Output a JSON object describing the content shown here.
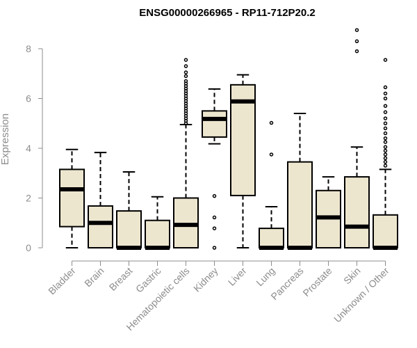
{
  "chart_data": {
    "type": "boxplot",
    "title": "ENSG00000266965 - RP11-712P20.2",
    "xlabel": "",
    "ylabel": "Expression",
    "ylim": [
      0,
      8.9
    ],
    "yticks": [
      0,
      2,
      4,
      6,
      8
    ],
    "colors": {
      "box_fill": "#ede6cf",
      "stroke": "#000000",
      "axis": "#8c8c8c"
    },
    "categories": [
      "Bladder",
      "Brain",
      "Breast",
      "Gastric",
      "Hematopoietic cells",
      "Kidney",
      "Liver",
      "Lung",
      "Pancreas",
      "Prostate",
      "Skin",
      "Unknown / Other"
    ],
    "boxes": [
      {
        "q1": 0.85,
        "median": 2.35,
        "q3": 3.15,
        "whisker_low": 0.0,
        "whisker_high": 3.95,
        "outliers": []
      },
      {
        "q1": 0.0,
        "median": 1.0,
        "q3": 1.68,
        "whisker_low": 0.0,
        "whisker_high": 3.83,
        "outliers": []
      },
      {
        "q1": 0.0,
        "median": 0.0,
        "q3": 1.48,
        "whisker_low": 0.0,
        "whisker_high": 3.05,
        "outliers": []
      },
      {
        "q1": 0.0,
        "median": 0.0,
        "q3": 1.1,
        "whisker_low": 0.0,
        "whisker_high": 2.05,
        "outliers": []
      },
      {
        "q1": 0.0,
        "median": 0.92,
        "q3": 2.0,
        "whisker_low": 0.0,
        "whisker_high": 4.95,
        "outliers": [
          5.0,
          5.1,
          5.2,
          5.3,
          5.4,
          5.5,
          5.6,
          5.7,
          5.8,
          5.9,
          6.0,
          6.1,
          6.2,
          6.3,
          6.4,
          6.5,
          6.6,
          6.7,
          6.9,
          7.05,
          7.3,
          7.55
        ]
      },
      {
        "q1": 4.45,
        "median": 5.18,
        "q3": 5.5,
        "whisker_low": 4.18,
        "whisker_high": 6.38,
        "outliers": [
          0.0,
          0.78,
          1.22,
          2.08
        ]
      },
      {
        "q1": 2.1,
        "median": 5.88,
        "q3": 6.55,
        "whisker_low": 0.0,
        "whisker_high": 6.95,
        "outliers": []
      },
      {
        "q1": 0.0,
        "median": 0.0,
        "q3": 0.78,
        "whisker_low": 0.0,
        "whisker_high": 1.65,
        "outliers": [
          3.75,
          5.02
        ]
      },
      {
        "q1": 0.0,
        "median": 0.0,
        "q3": 3.45,
        "whisker_low": 0.0,
        "whisker_high": 5.4,
        "outliers": []
      },
      {
        "q1": 0.0,
        "median": 1.22,
        "q3": 2.3,
        "whisker_low": 0.0,
        "whisker_high": 2.85,
        "outliers": []
      },
      {
        "q1": 0.0,
        "median": 0.85,
        "q3": 2.85,
        "whisker_low": 0.0,
        "whisker_high": 4.05,
        "outliers": [
          7.9,
          8.3,
          8.75
        ]
      },
      {
        "q1": 0.0,
        "median": 0.0,
        "q3": 1.32,
        "whisker_low": 0.0,
        "whisker_high": 3.15,
        "outliers": [
          3.3,
          3.45,
          3.6,
          3.75,
          3.9,
          4.05,
          4.25,
          4.4,
          4.6,
          4.8,
          5.0,
          5.2,
          5.45,
          5.7,
          6.0,
          6.2,
          6.45,
          7.55
        ]
      }
    ]
  }
}
